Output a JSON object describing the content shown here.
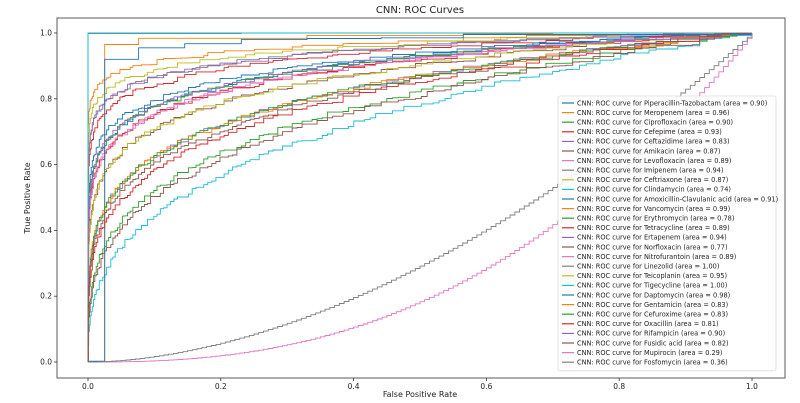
{
  "chart_data": {
    "type": "line",
    "title": "CNN: ROC Curves",
    "xlabel": "False Positive Rate",
    "ylabel": "True Positive Rate",
    "xlim": [
      -0.05,
      1.05
    ],
    "ylim": [
      -0.05,
      1.05
    ],
    "x_ticks": [
      "0.0",
      "0.2",
      "0.4",
      "0.6",
      "0.8",
      "1.0"
    ],
    "y_ticks": [
      "0.0",
      "0.2",
      "0.4",
      "0.6",
      "0.8",
      "1.0"
    ],
    "grid": false,
    "legend_position": "lower-right",
    "series": [
      {
        "name": "CNN: ROC curve for Piperacillin-Tazobactam (area = 0.90)",
        "auc": 0.9,
        "color": "#1f77b4"
      },
      {
        "name": "CNN: ROC curve for Meropenem (area = 0.96)",
        "auc": 0.96,
        "color": "#ff7f0e"
      },
      {
        "name": "CNN: ROC curve for Ciprofloxacin (area = 0.90)",
        "auc": 0.9,
        "color": "#2ca02c"
      },
      {
        "name": "CNN: ROC curve for Cefepime (area = 0.93)",
        "auc": 0.93,
        "color": "#d62728"
      },
      {
        "name": "CNN: ROC curve for Ceftazidime (area = 0.83)",
        "auc": 0.83,
        "color": "#9467bd"
      },
      {
        "name": "CNN: ROC curve for Amikacin (area = 0.87)",
        "auc": 0.87,
        "color": "#8c564b"
      },
      {
        "name": "CNN: ROC curve for Levofloxacin (area = 0.89)",
        "auc": 0.89,
        "color": "#e377c2"
      },
      {
        "name": "CNN: ROC curve for Imipenem (area = 0.94)",
        "auc": 0.94,
        "color": "#7f7f7f"
      },
      {
        "name": "CNN: ROC curve for Ceftriaxone (area = 0.87)",
        "auc": 0.87,
        "color": "#bcbd22"
      },
      {
        "name": "CNN: ROC curve for Clindamycin (area = 0.74)",
        "auc": 0.74,
        "color": "#17becf"
      },
      {
        "name": "CNN: ROC curve for Amoxicillin-Clavulanic acid (area = 0.91)",
        "auc": 0.91,
        "color": "#1f77b4"
      },
      {
        "name": "CNN: ROC curve for Vancomycin (area = 0.99)",
        "auc": 0.99,
        "color": "#ff7f0e"
      },
      {
        "name": "CNN: ROC curve for Erythromycin (area = 0.78)",
        "auc": 0.78,
        "color": "#2ca02c"
      },
      {
        "name": "CNN: ROC curve for Tetracycline (area = 0.89)",
        "auc": 0.89,
        "color": "#d62728"
      },
      {
        "name": "CNN: ROC curve for Ertapenem (area = 0.94)",
        "auc": 0.94,
        "color": "#9467bd"
      },
      {
        "name": "CNN: ROC curve for Norfloxacin (area = 0.77)",
        "auc": 0.77,
        "color": "#8c564b"
      },
      {
        "name": "CNN: ROC curve for Nitrofurantoin (area = 0.89)",
        "auc": 0.89,
        "color": "#e377c2"
      },
      {
        "name": "CNN: ROC curve for Linezolid (area = 1.00)",
        "auc": 1.0,
        "color": "#7f7f7f"
      },
      {
        "name": "CNN: ROC curve for Teicoplanin (area = 0.95)",
        "auc": 0.95,
        "color": "#bcbd22"
      },
      {
        "name": "CNN: ROC curve for Tigecycline (area = 1.00)",
        "auc": 1.0,
        "color": "#17becf"
      },
      {
        "name": "CNN: ROC curve for Daptomycin (area = 0.98)",
        "auc": 0.98,
        "color": "#1f77b4"
      },
      {
        "name": "CNN: ROC curve for Gentamicin (area = 0.83)",
        "auc": 0.83,
        "color": "#ff7f0e"
      },
      {
        "name": "CNN: ROC curve for Cefuroxime (area = 0.83)",
        "auc": 0.83,
        "color": "#2ca02c"
      },
      {
        "name": "CNN: ROC curve for Oxacillin (area = 0.81)",
        "auc": 0.81,
        "color": "#d62728"
      },
      {
        "name": "CNN: ROC curve for Rifampicin (area = 0.90)",
        "auc": 0.9,
        "color": "#9467bd"
      },
      {
        "name": "CNN: ROC curve for Fusidic acid (area = 0.82)",
        "auc": 0.82,
        "color": "#8c564b"
      },
      {
        "name": "CNN: ROC curve for Mupirocin (area = 0.29)",
        "auc": 0.29,
        "color": "#e377c2"
      },
      {
        "name": "CNN: ROC curve for Fosfomycin (area = 0.36)",
        "auc": 0.36,
        "color": "#7f7f7f"
      }
    ]
  }
}
